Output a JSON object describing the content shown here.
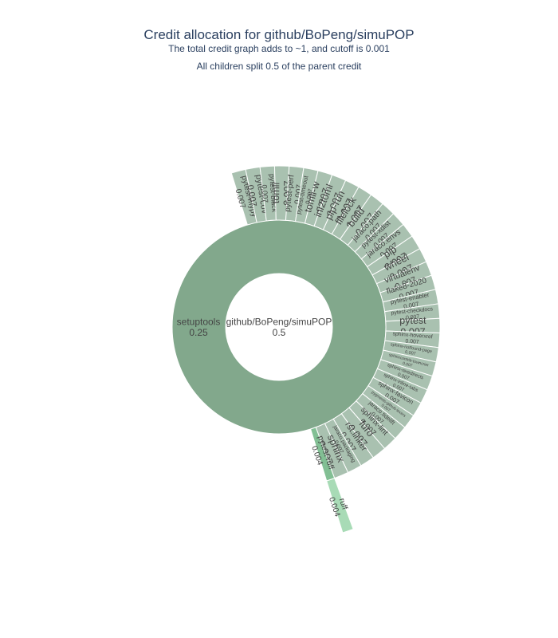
{
  "chart_data": {
    "type": "sunburst",
    "title": "Credit allocation for github/BoPeng/simuPOP",
    "subtitle_lines": [
      "The total credit graph adds to ~1, and cutoff is 0.001",
      "All children split 0.5 of the parent credit"
    ],
    "root": {
      "name": "github/BoPeng/simuPOP",
      "value": 0.5
    },
    "children": [
      {
        "name": "setuptools",
        "value": 0.25,
        "children": [
          {
            "name": "pytest-mypy",
            "value": 0.007
          },
          {
            "name": "pytest-cov",
            "value": 0.007
          },
          {
            "name": "pytest-black",
            "value": 0.007
          },
          {
            "name": "tomli",
            "value": 0.007
          },
          {
            "name": "pytest-perf",
            "value": 0.007
          },
          {
            "name": "pytest-timeout",
            "value": 0.007
          },
          {
            "name": "tomli-w",
            "value": 0.007
          },
          {
            "name": "ini2toml",
            "value": 0.007
          },
          {
            "name": "pip-run",
            "value": 0.007
          },
          {
            "name": "filelock",
            "value": 0.007
          },
          {
            "name": "build",
            "value": 0.007
          },
          {
            "name": "jaraco.path",
            "value": 0.007
          },
          {
            "name": "pytest-xdist",
            "value": 0.007
          },
          {
            "name": "jaraco.envs",
            "value": 0.007
          },
          {
            "name": "pip",
            "value": 0.007
          },
          {
            "name": "wheel",
            "value": 0.007
          },
          {
            "name": "virtualenv",
            "value": 0.007
          },
          {
            "name": "flake8-2020",
            "value": 0.007
          },
          {
            "name": "pytest-enabler",
            "value": 0.007
          },
          {
            "name": "pytest-checkdocs",
            "value": 0.007
          },
          {
            "name": "pytest",
            "value": 0.007
          },
          {
            "name": "sphinx-hoverxref",
            "value": 0.007
          },
          {
            "name": "sphinx-notfound-page",
            "value": 0.007
          },
          {
            "name": "sphinxcontrib-towncrier",
            "value": 0.007
          },
          {
            "name": "sphinx-reredirects",
            "value": 0.007
          },
          {
            "name": "sphinx-inline-tabs",
            "value": 0.007
          },
          {
            "name": "sphinx-favicon",
            "value": 0.007
          },
          {
            "name": "pygments-github-lexers",
            "value": 0.007
          },
          {
            "name": "jaraco.tidelift",
            "value": 0.007
          },
          {
            "name": "sphinx-lint",
            "value": 0.007
          },
          {
            "name": "furo",
            "value": 0.007
          },
          {
            "name": "rst.linker",
            "value": 0.007
          },
          {
            "name": "jaraco.packaging",
            "value": 0.007
          },
          {
            "name": "sphinx",
            "value": 0.007
          },
          {
            "name": "pytest-ruff",
            "value": 0.004,
            "children": [
              {
                "name": "ruff",
                "value": 0.004
              }
            ]
          }
        ]
      }
    ],
    "colors": {
      "level1": "#82a88c",
      "level2": "#a9c1b0",
      "highlight_level2": "#82bf94",
      "highlight_level3": "#a8dbb6",
      "center": "#ffffff"
    }
  }
}
